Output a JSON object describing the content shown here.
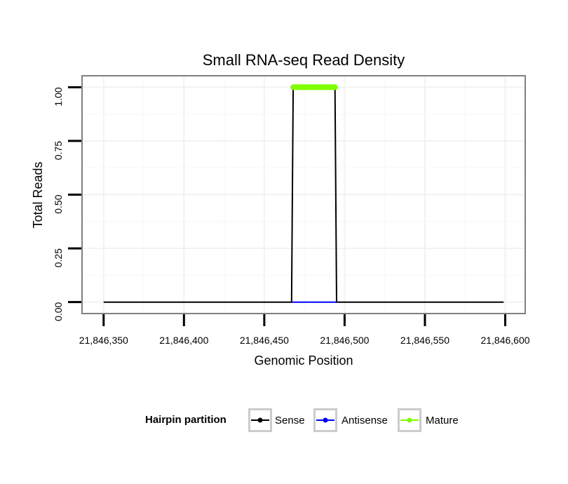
{
  "chart_data": {
    "type": "line",
    "title": "Small RNA-seq Read Density",
    "xlabel": "Genomic Position",
    "ylabel": "Total Reads",
    "xlim": [
      21846337,
      21846612
    ],
    "ylim": [
      -0.05,
      1.05
    ],
    "x_ticks": [
      21846350,
      21846400,
      21846450,
      21846500,
      21846550,
      21846600
    ],
    "x_tick_labels": [
      "21,846,350",
      "21,846,400",
      "21,846,450",
      "21,846,500",
      "21,846,550",
      "21,846,600"
    ],
    "y_ticks": [
      0,
      0.25,
      0.5,
      0.75,
      1.0
    ],
    "y_tick_labels": [
      "0.00",
      "0.25",
      "0.50",
      "0.75",
      "1.00"
    ],
    "grid": true,
    "series": [
      {
        "name": "Sense",
        "color": "#000000",
        "points": [
          [
            21846350,
            0
          ],
          [
            21846467,
            0
          ],
          [
            21846468,
            1
          ],
          [
            21846494,
            1
          ],
          [
            21846495,
            0
          ],
          [
            21846599,
            0
          ]
        ]
      },
      {
        "name": "Antisense",
        "color": "#0000ff",
        "points": [
          [
            21846467,
            0
          ],
          [
            21846495,
            0
          ]
        ]
      },
      {
        "name": "Mature",
        "color": "#7fff00",
        "points": [
          [
            21846468,
            1
          ],
          [
            21846494,
            1
          ]
        ]
      }
    ],
    "legend": {
      "title": "Hairpin partition",
      "position": "bottom",
      "entries": [
        "Sense",
        "Antisense",
        "Mature"
      ]
    }
  }
}
